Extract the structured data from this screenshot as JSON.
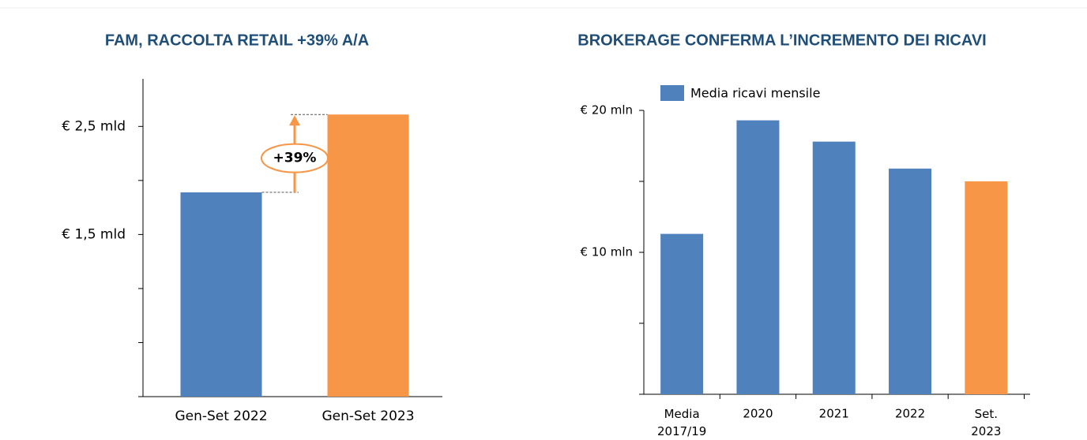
{
  "chart_data": [
    {
      "type": "bar",
      "title": "FAM, RACCOLTA RETAIL +39% A/A",
      "categories": [
        "Gen-Set 2022",
        "Gen-Set 2023"
      ],
      "values": [
        1.89,
        2.61
      ],
      "colors": [
        "#4f81bd",
        "#f79646"
      ],
      "ylim": [
        0,
        2.94
      ],
      "yticks": [
        {
          "value": 1.5,
          "label": "€ 1,5 mld"
        },
        {
          "value": 2.5,
          "label": "€ 2,5 mld"
        }
      ],
      "yticks_minor": [
        0,
        0.5,
        1,
        2
      ],
      "annotation": "+39%"
    },
    {
      "type": "bar",
      "title": "BROKERAGE CONFERMA L’INCREMENTO DEI RICAVI",
      "categories": [
        "Media 2017/19",
        "2020",
        "2021",
        "2022",
        "Set. 2023"
      ],
      "series": [
        {
          "name": "Media ricavi mensile",
          "color": "#4f81bd",
          "values": [
            11.3,
            19.3,
            17.8,
            15.9,
            15.0
          ]
        }
      ],
      "colors": [
        "#4f81bd",
        "#4f81bd",
        "#4f81bd",
        "#4f81bd",
        "#f79646"
      ],
      "ylim": [
        0,
        20
      ],
      "yticks": [
        {
          "value": 10,
          "label": "€ 10 mln"
        },
        {
          "value": 20,
          "label": "€ 20 mln"
        }
      ],
      "yticks_minor": [
        0,
        5,
        15
      ]
    }
  ]
}
